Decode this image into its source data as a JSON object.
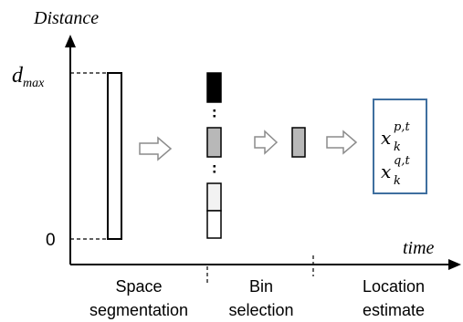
{
  "axes": {
    "y_label": "Distance",
    "x_label": "time",
    "d_max_base": "d",
    "d_max_sub": "max",
    "zero_label": "0"
  },
  "stages": [
    {
      "line1": "Space",
      "line2": "segmentation"
    },
    {
      "line1": "Bin",
      "line2": "selection"
    },
    {
      "line1": "Location",
      "line2": "estimate"
    }
  ],
  "estimate": {
    "x1_base": "x",
    "x1_sub": "k",
    "x1_sup": "p,t",
    "x2_base": "x",
    "x2_sub": "k",
    "x2_sup": "q,t"
  },
  "colors": {
    "axis": "#000000",
    "bin_black": "#000000",
    "bin_gray": "#b8b8b8",
    "bin_light": "#f2f2f2",
    "arrow_fill": "#ffffff",
    "arrow_stroke": "#8c8c8c",
    "estimate_border": "#3f6f9f"
  },
  "icons": [
    "flow-arrow-icon",
    "vertical-ellipsis-icon"
  ]
}
